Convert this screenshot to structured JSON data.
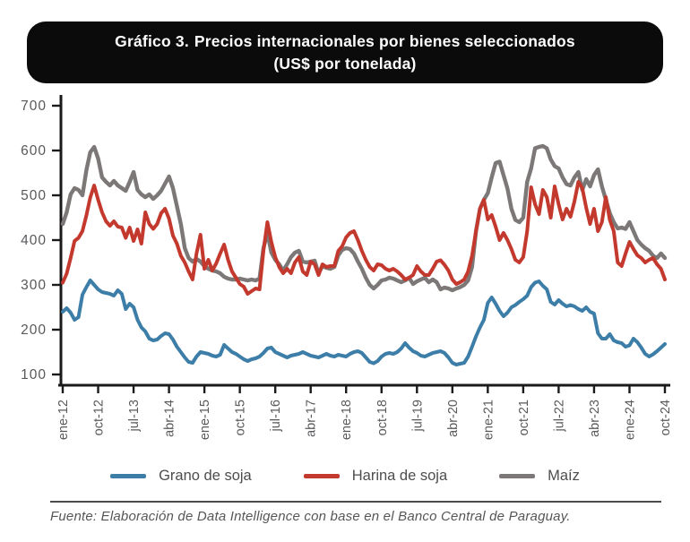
{
  "title": {
    "prefix": "Gráfico 3.",
    "text": "Precios internacionales por bienes seleccionados",
    "subtitle": "(US$ por tonelada)"
  },
  "source": "Fuente: Elaboración de Data Intelligence con base en el Banco Central de Paraguay.",
  "colors": {
    "title_bg": "#0b0b0b",
    "title_text": "#ffffff",
    "axis": "#1a1a1a",
    "tick_label": "#58595b",
    "legend_text": "#4d4d4f",
    "grano_de_soja": "#3d7ea8",
    "harina_de_soja": "#c4392e",
    "maiz": "#7c7877"
  },
  "chart_data": {
    "type": "line",
    "title": "Gráfico 3. Precios internacionales por bienes seleccionados (US$ por tonelada)",
    "xlabel": "",
    "ylabel": "",
    "x_unit": "month",
    "x_start": "ene-12",
    "x_end": "oct-24",
    "points_per_series": 154,
    "x_tick_interval_months": 9,
    "x_tick_labels": [
      "ene-12",
      "oct-12",
      "jul-13",
      "abr-14",
      "ene-15",
      "oct-15",
      "jul-16",
      "abr-17",
      "ene-18",
      "oct-18",
      "jul-19",
      "abr-20",
      "ene-21",
      "oct-21",
      "jul-22",
      "abr-23",
      "ene-24",
      "oct-24"
    ],
    "ylim": [
      100,
      700
    ],
    "y_ticks": [
      100,
      200,
      300,
      400,
      500,
      600,
      700
    ],
    "grid": false,
    "legend_position": "bottom",
    "series": [
      {
        "name": "Grano de soja",
        "color": "#3d7ea8",
        "values": [
          240,
          248,
          238,
          222,
          228,
          278,
          295,
          310,
          300,
          290,
          284,
          282,
          280,
          276,
          288,
          280,
          246,
          258,
          250,
          222,
          205,
          196,
          180,
          176,
          178,
          186,
          192,
          190,
          178,
          162,
          150,
          138,
          128,
          126,
          140,
          150,
          148,
          146,
          142,
          140,
          144,
          166,
          158,
          150,
          146,
          140,
          134,
          130,
          134,
          136,
          140,
          148,
          158,
          160,
          150,
          146,
          142,
          138,
          142,
          144,
          146,
          150,
          146,
          142,
          140,
          138,
          142,
          146,
          142,
          140,
          144,
          142,
          140,
          146,
          150,
          152,
          148,
          138,
          128,
          125,
          130,
          140,
          146,
          148,
          146,
          150,
          158,
          170,
          160,
          152,
          148,
          142,
          140,
          144,
          148,
          150,
          152,
          148,
          138,
          126,
          122,
          124,
          126,
          140,
          162,
          185,
          205,
          222,
          260,
          272,
          258,
          242,
          230,
          238,
          250,
          255,
          262,
          268,
          276,
          295,
          305,
          308,
          298,
          290,
          262,
          256,
          266,
          258,
          252,
          255,
          252,
          246,
          242,
          250,
          240,
          236,
          192,
          180,
          180,
          190,
          176,
          172,
          170,
          162,
          165,
          180,
          172,
          160,
          146,
          140,
          145,
          152,
          160,
          168
        ]
      },
      {
        "name": "Harina de soja",
        "color": "#c4392e",
        "values": [
          305,
          325,
          360,
          398,
          405,
          420,
          455,
          495,
          522,
          490,
          462,
          442,
          432,
          442,
          430,
          428,
          405,
          428,
          398,
          424,
          392,
          462,
          436,
          425,
          436,
          460,
          470,
          448,
          410,
          392,
          365,
          350,
          330,
          312,
          370,
          412,
          336,
          356,
          332,
          348,
          370,
          390,
          356,
          330,
          316,
          302,
          296,
          280,
          286,
          292,
          290,
          376,
          440,
          396,
          362,
          340,
          326,
          336,
          326,
          350,
          362,
          330,
          322,
          352,
          346,
          322,
          346,
          340,
          342,
          342,
          376,
          386,
          406,
          416,
          420,
          400,
          376,
          356,
          340,
          332,
          346,
          344,
          336,
          332,
          336,
          330,
          322,
          312,
          316,
          322,
          342,
          330,
          322,
          322,
          336,
          352,
          355,
          345,
          332,
          312,
          302,
          306,
          312,
          330,
          365,
          420,
          470,
          490,
          446,
          456,
          430,
          400,
          416,
          400,
          380,
          356,
          350,
          362,
          420,
          518,
          480,
          458,
          512,
          496,
          450,
          520,
          480,
          446,
          470,
          452,
          486,
          530,
          516,
          472,
          436,
          470,
          420,
          440,
          496,
          445,
          420,
          350,
          342,
          370,
          396,
          380,
          366,
          360,
          350,
          356,
          360,
          346,
          336,
          312
        ]
      },
      {
        "name": "Maíz",
        "color": "#7c7877",
        "values": [
          436,
          462,
          502,
          516,
          512,
          500,
          556,
          596,
          608,
          582,
          540,
          530,
          522,
          532,
          522,
          516,
          510,
          530,
          552,
          512,
          502,
          496,
          502,
          492,
          500,
          510,
          526,
          542,
          516,
          476,
          436,
          382,
          360,
          352,
          358,
          352,
          342,
          336,
          332,
          330,
          326,
          318,
          314,
          312,
          312,
          314,
          312,
          310,
          312,
          310,
          314,
          382,
          416,
          372,
          356,
          346,
          332,
          346,
          362,
          372,
          376,
          352,
          350,
          352,
          354,
          326,
          342,
          338,
          336,
          340,
          366,
          378,
          382,
          380,
          370,
          352,
          336,
          316,
          300,
          292,
          300,
          310,
          312,
          316,
          314,
          310,
          306,
          310,
          316,
          302,
          308,
          312,
          316,
          306,
          312,
          306,
          290,
          294,
          292,
          288,
          292,
          295,
          300,
          310,
          340,
          420,
          470,
          490,
          505,
          540,
          572,
          575,
          545,
          515,
          470,
          445,
          440,
          450,
          530,
          560,
          605,
          608,
          610,
          605,
          580,
          565,
          560,
          540,
          525,
          522,
          540,
          552,
          512,
          536,
          520,
          545,
          558,
          520,
          490,
          460,
          440,
          426,
          428,
          425,
          440,
          420,
          400,
          390,
          382,
          376,
          365,
          360,
          370,
          360
        ]
      }
    ]
  }
}
